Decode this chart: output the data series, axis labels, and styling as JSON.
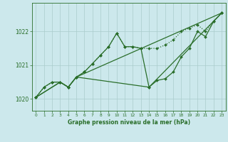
{
  "bg_color": "#cce8ec",
  "grid_color": "#aacccc",
  "line_color": "#2a6e2a",
  "marker_color": "#2a6e2a",
  "title": "Graphe pression niveau de la mer (hPa)",
  "xlim": [
    -0.5,
    23.5
  ],
  "ylim": [
    1019.65,
    1022.85
  ],
  "yticks": [
    1020,
    1021,
    1022
  ],
  "xticks": [
    0,
    1,
    2,
    3,
    4,
    5,
    6,
    7,
    8,
    9,
    10,
    11,
    12,
    13,
    14,
    15,
    16,
    17,
    18,
    19,
    20,
    21,
    22,
    23
  ],
  "series": [
    {
      "x": [
        0,
        1,
        2,
        3,
        4,
        5,
        6,
        7,
        8,
        9,
        10,
        11,
        12,
        13,
        14,
        15,
        16,
        17,
        18,
        19,
        20,
        21,
        22,
        23
      ],
      "y": [
        1020.05,
        1020.35,
        1020.5,
        1020.5,
        1020.35,
        1020.65,
        1020.8,
        1021.05,
        1021.3,
        1021.55,
        1021.95,
        1021.55,
        1021.55,
        1021.5,
        1021.5,
        1021.5,
        1021.6,
        1021.75,
        1022.0,
        1022.1,
        1022.2,
        1022.0,
        1022.3,
        1022.55
      ],
      "style": "dotted",
      "lw": 0.9,
      "marker": "D",
      "ms": 2.0
    },
    {
      "x": [
        0,
        1,
        2,
        3,
        4,
        5,
        6,
        7,
        8,
        9,
        10,
        11,
        12,
        13,
        14,
        15,
        16,
        17,
        18,
        19,
        20,
        21,
        22,
        23
      ],
      "y": [
        1020.05,
        1020.35,
        1020.5,
        1020.5,
        1020.35,
        1020.65,
        1020.8,
        1021.05,
        1021.3,
        1021.55,
        1021.95,
        1021.55,
        1021.55,
        1021.5,
        1020.35,
        1020.55,
        1020.6,
        1020.8,
        1021.25,
        1021.5,
        1022.0,
        1021.85,
        1022.3,
        1022.55
      ],
      "style": "solid",
      "lw": 0.9,
      "marker": "D",
      "ms": 2.0
    },
    {
      "x": [
        0,
        3,
        4,
        5,
        23
      ],
      "y": [
        1020.05,
        1020.5,
        1020.35,
        1020.65,
        1022.55
      ],
      "style": "solid",
      "lw": 0.9,
      "marker": "D",
      "ms": 2.0
    },
    {
      "x": [
        0,
        3,
        4,
        5,
        14,
        23
      ],
      "y": [
        1020.05,
        1020.5,
        1020.35,
        1020.65,
        1020.35,
        1022.55
      ],
      "style": "solid",
      "lw": 0.9,
      "marker": "D",
      "ms": 2.0
    }
  ]
}
